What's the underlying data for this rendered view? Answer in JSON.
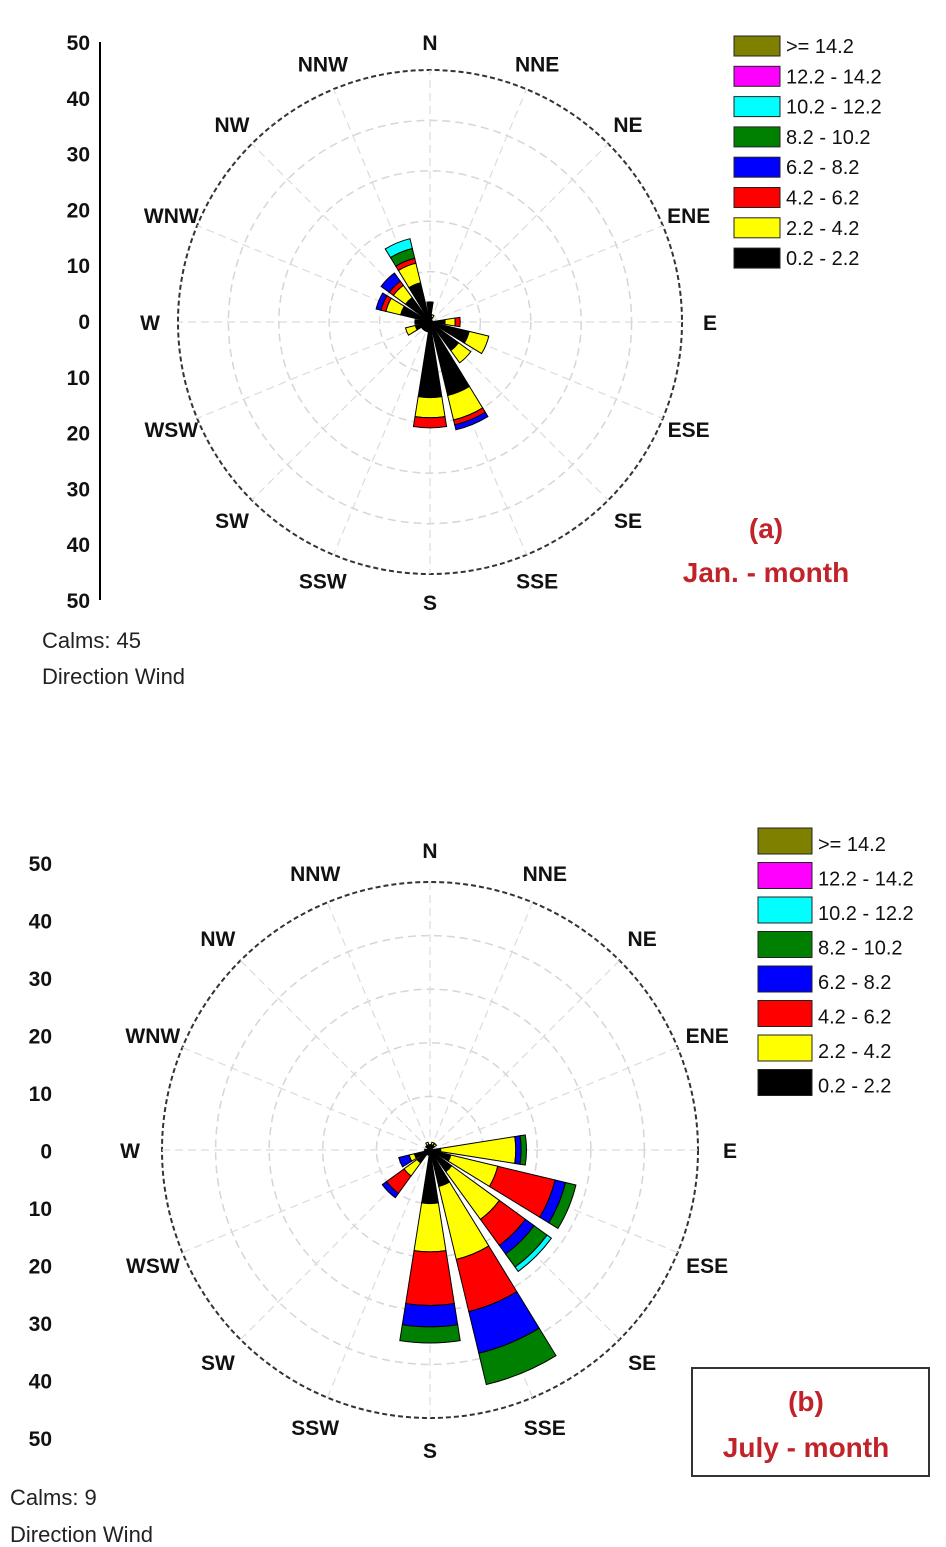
{
  "chart_data": [
    {
      "type": "wind-rose",
      "panel_label": "(a)",
      "panel_title": "Jan. - month",
      "calms_text": "Calms: 45",
      "footer_text": "Direction Wind",
      "directions": [
        "N",
        "NNE",
        "NE",
        "ENE",
        "E",
        "ESE",
        "SE",
        "SSE",
        "S",
        "SSW",
        "SW",
        "WSW",
        "W",
        "WNW",
        "NW",
        "NNW"
      ],
      "scale_ticks": [
        "50",
        "40",
        "30",
        "20",
        "10",
        "0",
        "10",
        "20",
        "30",
        "40",
        "50"
      ],
      "rmax": 50,
      "rings": [
        10,
        20,
        30,
        40,
        50
      ],
      "speed_bins": [
        "0.2 - 2.2",
        "2.2 - 4.2",
        "4.2 - 6.2",
        "6.2 - 8.2",
        "8.2 - 10.2",
        "10.2 - 12.2",
        "12.2 - 14.2",
        ">= 14.2"
      ],
      "bin_colors": [
        "#000000",
        "#ffff00",
        "#ff0000",
        "#0000ff",
        "#008000",
        "#00ffff",
        "#ff00ff",
        "#808000"
      ],
      "legend_order": [
        ">= 14.2",
        "12.2 - 14.2",
        "10.2 - 12.2",
        "8.2 - 10.2",
        "6.2 - 8.2",
        "4.2 - 6.2",
        "2.2 - 4.2",
        "0.2 - 2.2"
      ],
      "sectors": [
        {
          "direction": "N",
          "values": [
            4,
            0,
            0,
            0,
            0,
            0,
            0,
            0
          ]
        },
        {
          "direction": "NNE",
          "values": [
            1,
            0.5,
            0,
            0,
            0,
            0,
            0,
            0
          ]
        },
        {
          "direction": "NE",
          "values": [
            0.5,
            0,
            0,
            0,
            0,
            0,
            0,
            0
          ]
        },
        {
          "direction": "ENE",
          "values": [
            0.5,
            0,
            0,
            0,
            0,
            0,
            0,
            0
          ]
        },
        {
          "direction": "E",
          "values": [
            3,
            2,
            1,
            0,
            0,
            0,
            0,
            0
          ]
        },
        {
          "direction": "ESE",
          "values": [
            8,
            4,
            0,
            0,
            0,
            0,
            0,
            0
          ]
        },
        {
          "direction": "SE",
          "values": [
            7,
            3,
            0,
            0,
            0,
            0,
            0,
            0
          ]
        },
        {
          "direction": "SSE",
          "values": [
            15,
            5,
            1,
            1,
            0,
            0,
            0,
            0
          ]
        },
        {
          "direction": "S",
          "values": [
            15,
            4,
            2,
            0,
            0,
            0,
            0,
            0
          ]
        },
        {
          "direction": "SSW",
          "values": [
            2,
            0,
            0,
            0,
            0,
            0,
            0,
            0
          ]
        },
        {
          "direction": "SW",
          "values": [
            2,
            0,
            0,
            0,
            0,
            0,
            0,
            0
          ]
        },
        {
          "direction": "WSW",
          "values": [
            3,
            2,
            0,
            0,
            0,
            0,
            0,
            0
          ]
        },
        {
          "direction": "W",
          "values": [
            3,
            0,
            0,
            0,
            0,
            0,
            0,
            0
          ]
        },
        {
          "direction": "WNW",
          "values": [
            6,
            3,
            1,
            1,
            0,
            0,
            0,
            0
          ]
        },
        {
          "direction": "NW",
          "values": [
            6,
            3,
            1,
            2,
            0,
            0,
            0,
            0
          ]
        },
        {
          "direction": "NNW",
          "values": [
            8,
            4,
            1,
            0,
            2,
            2,
            0,
            0
          ]
        }
      ]
    },
    {
      "type": "wind-rose",
      "panel_label": "(b)",
      "panel_title": "July - month",
      "calms_text": "Calms: 9",
      "footer_text": "Direction Wind",
      "directions": [
        "N",
        "NNE",
        "NE",
        "ENE",
        "E",
        "ESE",
        "SE",
        "SSE",
        "S",
        "SSW",
        "SW",
        "WSW",
        "W",
        "WNW",
        "NW",
        "NNW"
      ],
      "scale_ticks": [
        "50",
        "40",
        "30",
        "20",
        "10",
        "0",
        "10",
        "20",
        "30",
        "40",
        "50"
      ],
      "rmax": 50,
      "rings": [
        10,
        20,
        30,
        40,
        50
      ],
      "speed_bins": [
        "0.2 - 2.2",
        "2.2 - 4.2",
        "4.2 - 6.2",
        "6.2 - 8.2",
        "8.2 - 10.2",
        "10.2 - 12.2",
        "12.2 - 14.2",
        ">= 14.2"
      ],
      "bin_colors": [
        "#000000",
        "#ffff00",
        "#ff0000",
        "#0000ff",
        "#008000",
        "#00ffff",
        "#ff00ff",
        "#808000"
      ],
      "legend_order": [
        ">= 14.2",
        "12.2 - 14.2",
        "10.2 - 12.2",
        "8.2 - 10.2",
        "6.2 - 8.2",
        "4.2 - 6.2",
        "2.2 - 4.2",
        "0.2 - 2.2"
      ],
      "sectors": [
        {
          "direction": "N",
          "values": [
            1,
            0,
            0,
            0,
            0,
            0,
            0,
            0
          ]
        },
        {
          "direction": "NNE",
          "values": [
            1,
            0.5,
            0,
            0,
            0,
            0,
            0,
            0
          ]
        },
        {
          "direction": "NE",
          "values": [
            1,
            0.5,
            0,
            0,
            0,
            0,
            0,
            0
          ]
        },
        {
          "direction": "ENE",
          "values": [
            0.5,
            0,
            0,
            0,
            0,
            0,
            0,
            0
          ]
        },
        {
          "direction": "E",
          "values": [
            2,
            14,
            0,
            1,
            1,
            0,
            0,
            0
          ]
        },
        {
          "direction": "ESE",
          "values": [
            4,
            9,
            11,
            2,
            2,
            0,
            0,
            0
          ]
        },
        {
          "direction": "SE",
          "values": [
            5,
            11,
            6,
            2,
            3,
            1,
            0,
            0
          ]
        },
        {
          "direction": "SSE",
          "values": [
            7,
            14,
            10,
            8,
            6,
            0,
            0,
            0
          ]
        },
        {
          "direction": "S",
          "values": [
            10,
            9,
            10,
            4,
            3,
            0,
            0,
            0
          ]
        },
        {
          "direction": "SSW",
          "values": [
            1,
            0,
            0,
            0,
            0,
            0,
            0,
            0
          ]
        },
        {
          "direction": "SW",
          "values": [
            3,
            3,
            4,
            1,
            0,
            0,
            0,
            0
          ]
        },
        {
          "direction": "WSW",
          "values": [
            3,
            1,
            0,
            2,
            0,
            0,
            0,
            0
          ]
        },
        {
          "direction": "W",
          "values": [
            1,
            0,
            0,
            0,
            0,
            0,
            0,
            0
          ]
        },
        {
          "direction": "WNW",
          "values": [
            0.5,
            0,
            0,
            0,
            0,
            0,
            0,
            0
          ]
        },
        {
          "direction": "NW",
          "values": [
            1,
            0,
            0,
            0,
            0,
            0,
            0,
            0
          ]
        },
        {
          "direction": "NNW",
          "values": [
            1,
            0.5,
            0,
            0,
            0,
            0,
            0,
            0
          ]
        }
      ]
    }
  ]
}
